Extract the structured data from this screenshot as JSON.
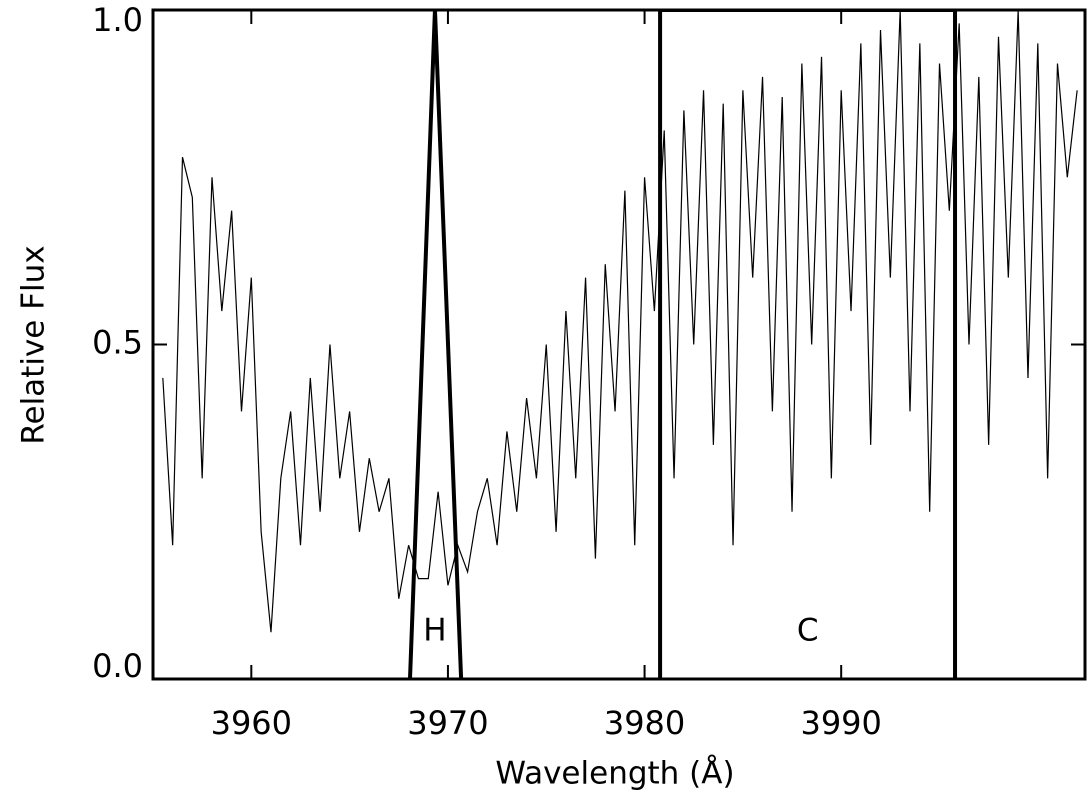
{
  "chart_data": {
    "type": "line",
    "xlabel": "Wavelength (Å)",
    "ylabel": "Relative Flux",
    "xlim": [
      3955,
      4002.4
    ],
    "ylim": [
      0,
      1.0
    ],
    "xticks": [
      3960,
      3970,
      3980,
      3990
    ],
    "yticks": [
      {
        "value": 0,
        "label": "0.0"
      },
      {
        "value": 0.5,
        "label": "0.5"
      },
      {
        "value": 1.0,
        "label": "1.0"
      }
    ],
    "series": [
      {
        "color": "#000000",
        "x": [
          3955.5,
          3956,
          3956.5,
          3957,
          3957.5,
          3958,
          3958.5,
          3959,
          3959.5,
          3960,
          3960.5,
          3961,
          3961.5,
          3962,
          3962.5,
          3963,
          3963.5,
          3964,
          3964.5,
          3965,
          3965.5,
          3966,
          3966.5,
          3967,
          3967.5,
          3968,
          3968.5,
          3969,
          3969.5,
          3970,
          3970.5,
          3971,
          3971.5,
          3972,
          3972.5,
          3973,
          3973.5,
          3974,
          3974.5,
          3975,
          3975.5,
          3976,
          3976.5,
          3977,
          3977.5,
          3978,
          3978.5,
          3979,
          3979.5,
          3980,
          3980.5,
          3981,
          3981.5,
          3982,
          3982.5,
          3983,
          3983.5,
          3984,
          3984.5,
          3985,
          3985.5,
          3986,
          3986.5,
          3987,
          3987.5,
          3988,
          3988.5,
          3989,
          3989.5,
          3990,
          3990.5,
          3991,
          3991.5,
          3992,
          3992.5,
          3993,
          3993.5,
          3994,
          3994.5,
          3995,
          3995.5,
          3996,
          3996.5,
          3997,
          3997.5,
          3998,
          3998.5,
          3999,
          3999.5,
          4000,
          4000.5,
          4001,
          4001.5,
          4002
        ],
        "values": [
          0.45,
          0.2,
          0.78,
          0.72,
          0.3,
          0.75,
          0.55,
          0.7,
          0.4,
          0.6,
          0.22,
          0.07,
          0.3,
          0.4,
          0.2,
          0.45,
          0.25,
          0.5,
          0.3,
          0.4,
          0.22,
          0.33,
          0.25,
          0.3,
          0.12,
          0.2,
          0.15,
          0.15,
          0.28,
          0.14,
          0.2,
          0.16,
          0.25,
          0.3,
          0.2,
          0.37,
          0.25,
          0.42,
          0.3,
          0.5,
          0.22,
          0.55,
          0.3,
          0.6,
          0.18,
          0.62,
          0.4,
          0.73,
          0.2,
          0.75,
          0.55,
          0.82,
          0.3,
          0.85,
          0.5,
          0.88,
          0.35,
          0.86,
          0.2,
          0.88,
          0.6,
          0.9,
          0.4,
          0.87,
          0.25,
          0.92,
          0.5,
          0.93,
          0.3,
          0.88,
          0.55,
          0.95,
          0.35,
          0.97,
          0.6,
          1.0,
          0.4,
          0.95,
          0.25,
          0.92,
          0.7,
          0.98,
          0.5,
          0.9,
          0.35,
          0.96,
          0.6,
          1.0,
          0.45,
          0.95,
          0.3,
          0.92,
          0.75,
          0.88
        ]
      }
    ],
    "bandpasses": [
      {
        "x": [
          3968.07,
          3969.34,
          3970.67
        ],
        "y": [
          0,
          1.0,
          0
        ]
      },
      {
        "x": [
          3980.79,
          3980.79,
          3995.79,
          3995.79
        ],
        "y": [
          0,
          1.0,
          1.0,
          0
        ]
      }
    ],
    "annotations": [
      {
        "text": "H",
        "x": 3969.34,
        "y": 0.07
      },
      {
        "text": "C",
        "x": 3988.3,
        "y": 0.07
      }
    ]
  }
}
